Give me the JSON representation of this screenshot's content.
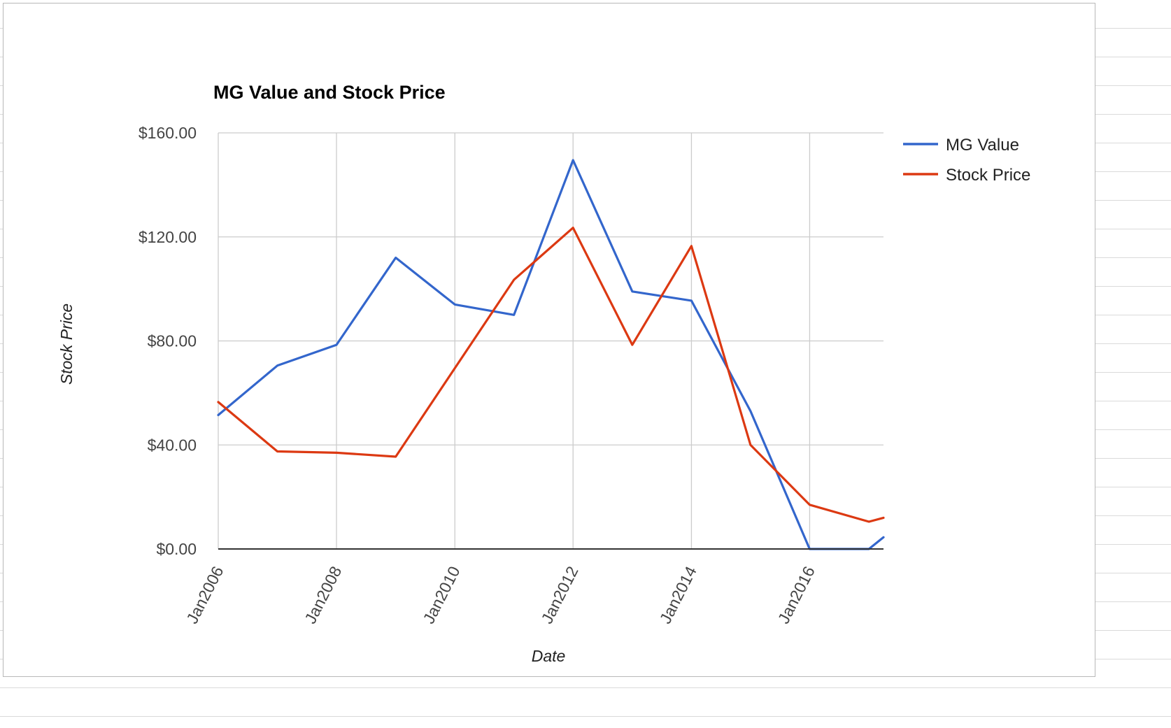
{
  "chart_data": {
    "type": "line",
    "title": "MG Value and Stock Price",
    "xlabel": "Date",
    "ylabel": "Stock Price",
    "x": [
      "2006-01",
      "2007-01",
      "2008-01",
      "2009-01",
      "2010-01",
      "2011-01",
      "2012-01",
      "2013-01",
      "2014-01",
      "2015-01",
      "2016-01",
      "2017-01",
      "2017-04"
    ],
    "x_ticks": [
      "2006-01",
      "2008-01",
      "2010-01",
      "2012-01",
      "2014-01",
      "2016-01"
    ],
    "x_tick_labels": [
      "Jan2006",
      "Jan2008",
      "Jan2010",
      "Jan2012",
      "Jan2014",
      "Jan2016"
    ],
    "y_ticks": [
      0,
      40,
      80,
      120,
      160
    ],
    "y_tick_labels": [
      "$0.00",
      "$40.00",
      "$80.00",
      "$120.00",
      "$160.00"
    ],
    "ylim": [
      0,
      160
    ],
    "grid": true,
    "legend_position": "right",
    "series": [
      {
        "name": "MG Value",
        "color": "#3366cc",
        "values": [
          51.5,
          70.5,
          78.5,
          112.0,
          94.0,
          90.0,
          149.5,
          99.0,
          95.5,
          53.0,
          0.0,
          0.0,
          4.5
        ]
      },
      {
        "name": "Stock Price",
        "color": "#dc3912",
        "values": [
          56.5,
          37.5,
          37.0,
          35.5,
          69.5,
          103.5,
          123.5,
          78.5,
          116.5,
          40.0,
          17.0,
          10.5,
          12.0
        ]
      }
    ]
  }
}
